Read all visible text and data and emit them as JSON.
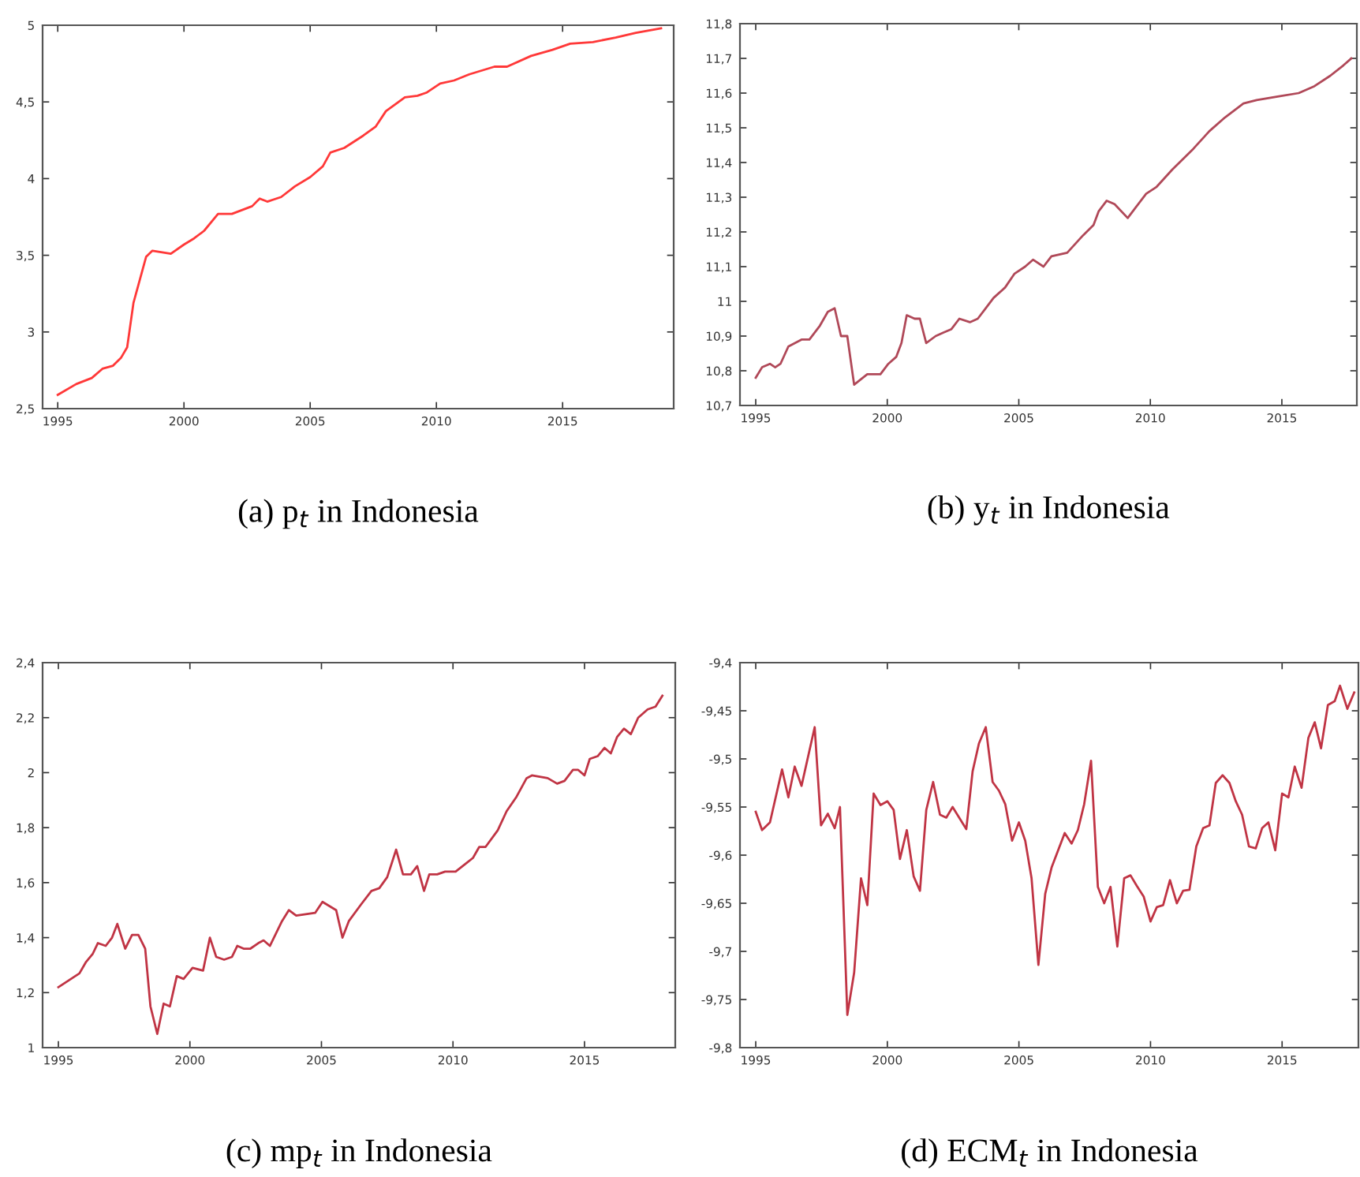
{
  "chart_data": [
    {
      "type": "line",
      "title": "(a) p$_{t}$ in Indonesia",
      "color": "#ff3838",
      "x": [
        1995.0,
        1995.73,
        1996.35,
        1996.77,
        1997.19,
        1997.5,
        1997.75,
        1998.0,
        1998.5,
        1998.75,
        1999.48,
        2000.0,
        2000.4,
        2000.8,
        2001.35,
        2001.9,
        2002.7,
        2003.0,
        2003.3,
        2003.85,
        2004.4,
        2005.0,
        2005.5,
        2005.8,
        2006.35,
        2007.1,
        2007.6,
        2008.0,
        2008.75,
        2009.25,
        2009.6,
        2010.15,
        2010.7,
        2011.3,
        2012.3,
        2012.8,
        2013.75,
        2014.6,
        2015.3,
        2016.2,
        2017.1,
        2017.9,
        2018.9
      ],
      "values": [
        2.59,
        2.66,
        2.7,
        2.76,
        2.78,
        2.83,
        2.9,
        3.19,
        3.49,
        3.53,
        3.51,
        3.57,
        3.61,
        3.66,
        3.77,
        3.77,
        3.82,
        3.87,
        3.85,
        3.88,
        3.95,
        4.01,
        4.08,
        4.17,
        4.2,
        4.28,
        4.34,
        4.44,
        4.53,
        4.54,
        4.56,
        4.62,
        4.64,
        4.68,
        4.73,
        4.73,
        4.8,
        4.84,
        4.88,
        4.89,
        4.92,
        4.95,
        4.98
      ],
      "xlim": [
        1994.4,
        2019.4
      ],
      "ylim": [
        2.5,
        5
      ],
      "xticks": [
        1995,
        2000,
        2005,
        2010,
        2015
      ],
      "yticks": [
        {
          "value": 2.5,
          "label": "2,5"
        },
        3,
        {
          "value": 3.5,
          "label": "3,5"
        },
        4,
        {
          "value": 4.5,
          "label": "4,5"
        },
        5
      ]
    },
    {
      "type": "line",
      "title": "(b) y$_{t}$ in Indonesia",
      "color": "#b04858",
      "x": [
        1995.0,
        1995.24,
        1995.54,
        1995.74,
        1995.94,
        1996.24,
        1996.74,
        1997.04,
        1997.44,
        1997.74,
        1998.0,
        1998.24,
        1998.48,
        1998.74,
        1999.24,
        1999.74,
        2000.04,
        2000.34,
        2000.54,
        2000.74,
        2001.04,
        2001.24,
        2001.48,
        2001.84,
        2002.14,
        2002.44,
        2002.74,
        2003.14,
        2003.44,
        2003.74,
        2004.04,
        2004.48,
        2004.84,
        2005.24,
        2005.54,
        2005.94,
        2006.24,
        2006.84,
        2007.44,
        2007.84,
        2008.04,
        2008.34,
        2008.64,
        2009.14,
        2009.44,
        2009.84,
        2010.24,
        2010.84,
        2011.64,
        2012.24,
        2012.84,
        2013.54,
        2014.04,
        2014.84,
        2015.64,
        2016.24,
        2016.84,
        2017.34,
        2017.64
      ],
      "values": [
        10.78,
        10.81,
        10.82,
        10.81,
        10.82,
        10.87,
        10.89,
        10.89,
        10.93,
        10.97,
        10.98,
        10.9,
        10.9,
        10.76,
        10.79,
        10.79,
        10.82,
        10.84,
        10.88,
        10.96,
        10.95,
        10.95,
        10.88,
        10.9,
        10.91,
        10.92,
        10.95,
        10.94,
        10.95,
        10.98,
        11.01,
        11.04,
        11.08,
        11.1,
        11.12,
        11.1,
        11.13,
        11.14,
        11.19,
        11.22,
        11.26,
        11.29,
        11.28,
        11.24,
        11.27,
        11.31,
        11.33,
        11.38,
        11.44,
        11.49,
        11.53,
        11.57,
        11.58,
        11.59,
        11.6,
        11.62,
        11.65,
        11.68,
        11.7
      ],
      "xlim": [
        1994.4,
        2017.85
      ],
      "ylim": [
        10.7,
        11.8
      ],
      "xticks": [
        1995,
        2000,
        2005,
        2010,
        2015
      ],
      "yticks": [
        {
          "value": 10.7,
          "label": "10,7"
        },
        {
          "value": 10.8,
          "label": "10,8"
        },
        {
          "value": 10.9,
          "label": "10,9"
        },
        11,
        {
          "value": 11.1,
          "label": "11,1"
        },
        {
          "value": 11.2,
          "label": "11,2"
        },
        {
          "value": 11.3,
          "label": "11,3"
        },
        {
          "value": 11.4,
          "label": "11,4"
        },
        {
          "value": 11.5,
          "label": "11,5"
        },
        {
          "value": 11.6,
          "label": "11,6"
        },
        {
          "value": 11.7,
          "label": "11,7"
        },
        {
          "value": 11.8,
          "label": "11,8"
        }
      ]
    },
    {
      "type": "line",
      "title": "(c) mp$_{t}$ in Indonesia",
      "color": "#c03444",
      "x": [
        1995.0,
        1995.8,
        1996.04,
        1996.3,
        1996.5,
        1996.8,
        1997.04,
        1997.24,
        1997.54,
        1997.8,
        1998.04,
        1998.3,
        1998.5,
        1998.76,
        1999.0,
        1999.24,
        1999.5,
        1999.76,
        2000.1,
        2000.5,
        2000.76,
        2001.0,
        2001.3,
        2001.6,
        2001.8,
        2002.04,
        2002.3,
        2002.6,
        2002.8,
        2003.04,
        2003.5,
        2003.76,
        2004.04,
        2004.76,
        2005.04,
        2005.56,
        2005.8,
        2006.04,
        2006.5,
        2006.9,
        2007.2,
        2007.5,
        2007.84,
        2008.1,
        2008.4,
        2008.64,
        2008.9,
        2009.1,
        2009.4,
        2009.7,
        2010.1,
        2010.5,
        2010.76,
        2011.0,
        2011.24,
        2011.7,
        2012.04,
        2012.4,
        2012.8,
        2013.0,
        2013.6,
        2013.96,
        2014.24,
        2014.56,
        2014.76,
        2015.0,
        2015.2,
        2015.5,
        2015.76,
        2016.0,
        2016.24,
        2016.5,
        2016.76,
        2017.04,
        2017.4,
        2017.7,
        2017.96
      ],
      "values": [
        1.22,
        1.27,
        1.31,
        1.34,
        1.38,
        1.37,
        1.4,
        1.45,
        1.36,
        1.41,
        1.41,
        1.36,
        1.15,
        1.05,
        1.16,
        1.15,
        1.26,
        1.25,
        1.29,
        1.28,
        1.4,
        1.33,
        1.32,
        1.33,
        1.37,
        1.36,
        1.36,
        1.38,
        1.39,
        1.37,
        1.46,
        1.5,
        1.48,
        1.49,
        1.53,
        1.5,
        1.4,
        1.46,
        1.52,
        1.57,
        1.58,
        1.62,
        1.72,
        1.63,
        1.63,
        1.66,
        1.57,
        1.63,
        1.63,
        1.64,
        1.64,
        1.67,
        1.69,
        1.73,
        1.73,
        1.79,
        1.86,
        1.91,
        1.98,
        1.99,
        1.98,
        1.96,
        1.97,
        2.01,
        2.01,
        1.99,
        2.05,
        2.06,
        2.09,
        2.07,
        2.13,
        2.16,
        2.14,
        2.2,
        2.23,
        2.24,
        2.28
      ],
      "xlim": [
        1994.4,
        2018.45
      ],
      "ylim": [
        1,
        2.4
      ],
      "xticks": [
        1995,
        2000,
        2005,
        2010,
        2015
      ],
      "yticks": [
        1,
        {
          "value": 1.2,
          "label": "1,2"
        },
        {
          "value": 1.4,
          "label": "1,4"
        },
        {
          "value": 1.6,
          "label": "1,6"
        },
        {
          "value": 1.8,
          "label": "1,8"
        },
        2,
        {
          "value": 2.2,
          "label": "2,2"
        },
        {
          "value": 2.4,
          "label": "2,4"
        }
      ]
    },
    {
      "type": "line",
      "title": "(d) ECM$_{t}$ in Indonesia",
      "color": "#c03444",
      "x": [
        1995.0,
        1995.24,
        1995.54,
        1996.0,
        1996.24,
        1996.48,
        1996.74,
        1997.24,
        1997.48,
        1997.74,
        1998.0,
        1998.2,
        1998.48,
        1998.74,
        1999.0,
        1999.24,
        1999.48,
        1999.74,
        2000.0,
        2000.24,
        2000.48,
        2000.74,
        2001.0,
        2001.24,
        2001.48,
        2001.74,
        2002.0,
        2002.24,
        2002.48,
        2003.0,
        2003.24,
        2003.48,
        2003.74,
        2004.0,
        2004.24,
        2004.48,
        2004.74,
        2005.0,
        2005.24,
        2005.48,
        2005.74,
        2006.0,
        2006.24,
        2006.74,
        2007.0,
        2007.24,
        2007.48,
        2007.74,
        2008.0,
        2008.24,
        2008.48,
        2008.74,
        2009.0,
        2009.24,
        2009.48,
        2009.74,
        2010.0,
        2010.24,
        2010.48,
        2010.74,
        2011.0,
        2011.24,
        2011.48,
        2011.74,
        2012.0,
        2012.24,
        2012.48,
        2012.74,
        2013.0,
        2013.24,
        2013.48,
        2013.74,
        2014.0,
        2014.24,
        2014.48,
        2014.74,
        2015.0,
        2015.24,
        2015.48,
        2015.74,
        2016.0,
        2016.24,
        2016.48,
        2016.74,
        2017.0,
        2017.2,
        2017.48,
        2017.74
      ],
      "values": [
        -9.555,
        -9.574,
        -9.566,
        -9.511,
        -9.54,
        -9.508,
        -9.528,
        -9.467,
        -9.569,
        -9.557,
        -9.572,
        -9.55,
        -9.766,
        -9.722,
        -9.624,
        -9.652,
        -9.536,
        -9.548,
        -9.544,
        -9.553,
        -9.604,
        -9.574,
        -9.622,
        -9.637,
        -9.553,
        -9.524,
        -9.558,
        -9.561,
        -9.55,
        -9.573,
        -9.513,
        -9.484,
        -9.467,
        -9.524,
        -9.533,
        -9.547,
        -9.585,
        -9.566,
        -9.585,
        -9.624,
        -9.714,
        -9.64,
        -9.613,
        -9.577,
        -9.588,
        -9.574,
        -9.547,
        -9.502,
        -9.633,
        -9.65,
        -9.633,
        -9.695,
        -9.624,
        -9.621,
        -9.632,
        -9.643,
        -9.669,
        -9.654,
        -9.652,
        -9.626,
        -9.65,
        -9.637,
        -9.636,
        -9.591,
        -9.572,
        -9.569,
        -9.525,
        -9.517,
        -9.525,
        -9.544,
        -9.558,
        -9.591,
        -9.593,
        -9.572,
        -9.566,
        -9.595,
        -9.536,
        -9.54,
        -9.508,
        -9.53,
        -9.478,
        -9.462,
        -9.489,
        -9.444,
        -9.44,
        -9.424,
        -9.448,
        -9.431
      ],
      "xlim": [
        1994.4,
        2017.9
      ],
      "ylim": [
        -9.8,
        -9.4
      ],
      "xticks": [
        1995,
        2000,
        2005,
        2010,
        2015
      ],
      "yticks": [
        {
          "value": -9.8,
          "label": "-9,8"
        },
        {
          "value": -9.75,
          "label": "-9,75"
        },
        {
          "value": -9.7,
          "label": "-9,7"
        },
        {
          "value": -9.65,
          "label": "-9,65"
        },
        {
          "value": -9.6,
          "label": "-9,6"
        },
        {
          "value": -9.55,
          "label": "-9,55"
        },
        {
          "value": -9.5,
          "label": "-9,5"
        },
        {
          "value": -9.45,
          "label": "-9,45"
        },
        {
          "value": -9.4,
          "label": "-9,4"
        }
      ]
    }
  ]
}
